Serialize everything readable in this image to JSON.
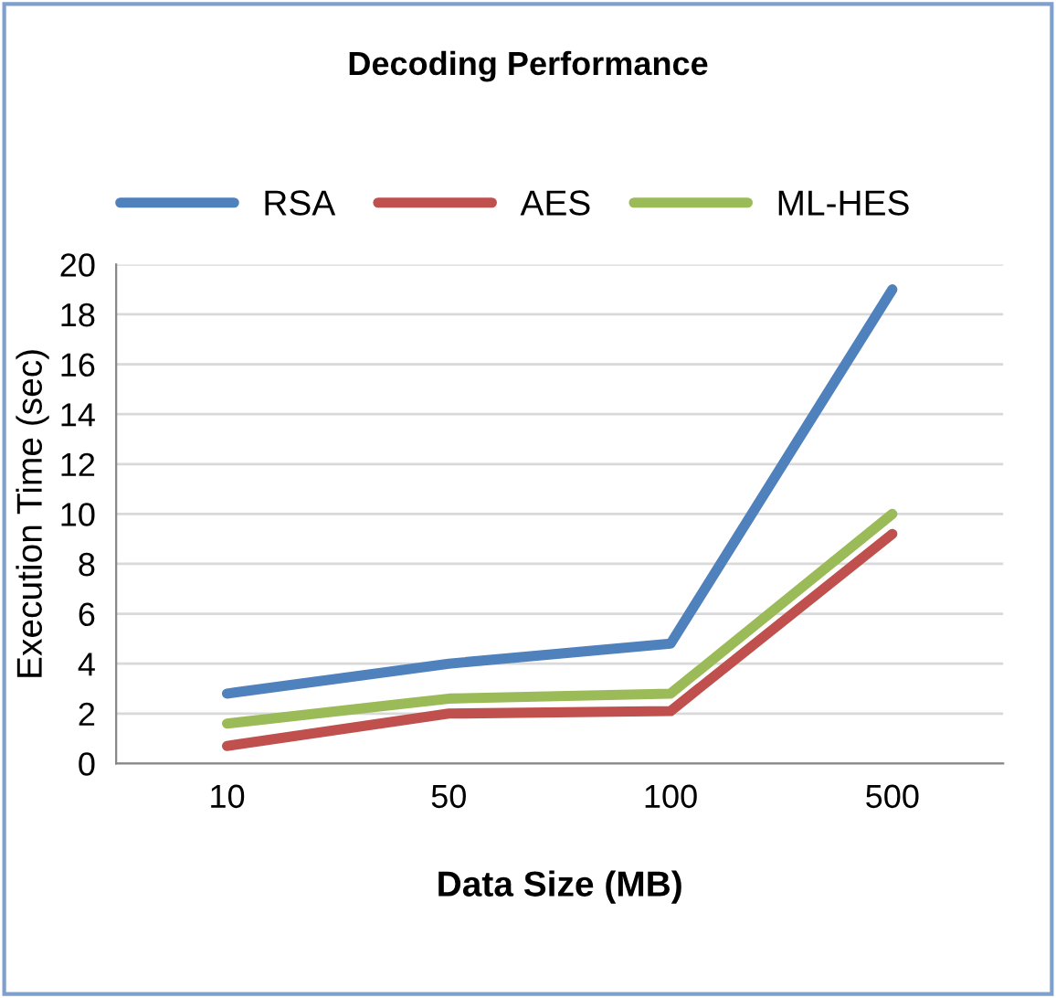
{
  "chart_data": {
    "type": "line",
    "title": "Decoding Performance",
    "xlabel": "Data Size (MB)",
    "ylabel": "Execution Time (sec)",
    "categories": [
      "10",
      "50",
      "100",
      "500"
    ],
    "series": [
      {
        "name": "RSA",
        "color": "#4f81bd",
        "values": [
          2.8,
          4.0,
          4.8,
          19.0
        ]
      },
      {
        "name": "AES",
        "color": "#c0504d",
        "values": [
          0.7,
          2.0,
          2.1,
          9.2
        ]
      },
      {
        "name": "ML-HES",
        "color": "#9bbb59",
        "values": [
          1.6,
          2.6,
          2.8,
          10.0
        ]
      }
    ],
    "ylim": [
      0,
      20
    ],
    "yticks": [
      0,
      2,
      4,
      6,
      8,
      10,
      12,
      14,
      16,
      18,
      20
    ],
    "grid": "y",
    "legend": "top",
    "marker": "none",
    "line_style": "solid"
  }
}
